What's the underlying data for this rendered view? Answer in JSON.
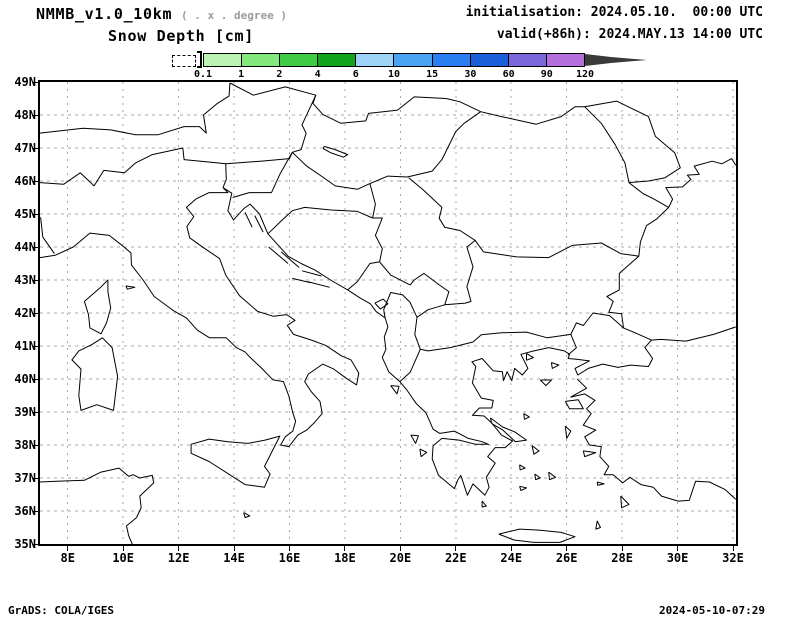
{
  "header": {
    "model": "NMMB_v1.0_10km",
    "model_note": "( . x . degree )",
    "variable_title": "Snow Depth [cm]",
    "init_line": "initialisation: 2024.05.10.  00:00 UTC",
    "valid_line": "valid(+86h): 2024.MAY.13 14:00 UTC"
  },
  "colorbar": {
    "levels": [
      "0.1",
      "1",
      "2",
      "4",
      "6",
      "10",
      "15",
      "30",
      "60",
      "90",
      "120"
    ],
    "colors": [
      "#baf3b4",
      "#84e97d",
      "#3fcb44",
      "#11a31c",
      "#9ed3f8",
      "#4aa3f2",
      "#2a7ef2",
      "#1a5fd9",
      "#7a67da",
      "#b56fdd"
    ],
    "overflow_arrow_color": "#3a3a3a",
    "underflow_style": "white box with dashed outline"
  },
  "axes": {
    "lat_labels": [
      "49N",
      "48N",
      "47N",
      "46N",
      "45N",
      "44N",
      "43N",
      "42N",
      "41N",
      "40N",
      "39N",
      "38N",
      "37N",
      "36N",
      "35N"
    ],
    "lon_labels": [
      "8E",
      "10E",
      "12E",
      "14E",
      "16E",
      "18E",
      "20E",
      "22E",
      "24E",
      "26E",
      "28E",
      "30E",
      "32E"
    ],
    "grid_color": "#a9a9a9",
    "coast_color": "#000000"
  },
  "footer": {
    "left": "GrADS: COLA/IGES",
    "right": "2024-05-10-07:29"
  },
  "chart_data": {
    "type": "map",
    "title": "Snow Depth [cm]",
    "model": "NMMB_v1.0_10km",
    "initialisation": "2024.05.10. 00:00 UTC",
    "valid": "2024.MAY.13 14:00 UTC (+86h)",
    "lon_range_deg_east": [
      7,
      32.1
    ],
    "lat_range_deg_north": [
      35,
      49
    ],
    "lon_tick_step_deg": 2,
    "lat_tick_step_deg": 1,
    "grid": "dashed gray lat/lon graticule",
    "legend_position": "top, horizontal colorbar",
    "colorbar_levels_cm": [
      0.1,
      1,
      2,
      4,
      6,
      10,
      15,
      30,
      60,
      90,
      120
    ],
    "colorbar_colors": [
      "#baf3b4",
      "#84e97d",
      "#3fcb44",
      "#11a31c",
      "#9ed3f8",
      "#4aa3f2",
      "#2a7ef2",
      "#1a5fd9",
      "#7a67da",
      "#b56fdd"
    ],
    "shaded_values": "no shaded snow-depth areas visible in the domain (field below 0.1 cm everywhere); only coastlines and country borders drawn"
  }
}
